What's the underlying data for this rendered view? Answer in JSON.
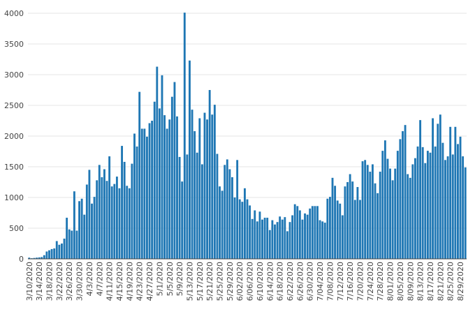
{
  "chart_data": {
    "type": "bar",
    "title": "",
    "xlabel": "",
    "ylabel": "",
    "ylim": [
      0,
      4000
    ],
    "yticks": [
      0,
      500,
      1000,
      1500,
      2000,
      2500,
      3000,
      3500,
      4000
    ],
    "grid": true,
    "legend": "none",
    "bar_color": "#1f77b4",
    "start_date": "2020-03-10",
    "xtick_labels": [
      "3/10/2020",
      "3/14/2020",
      "3/18/2020",
      "3/22/2020",
      "3/26/2020",
      "3/30/2020",
      "4/3/2020",
      "4/7/2020",
      "4/11/2020",
      "4/15/2020",
      "4/19/2020",
      "4/23/2020",
      "4/27/2020",
      "5/1/2020",
      "5/5/2020",
      "5/9/2020",
      "5/13/2020",
      "5/17/2020",
      "5/21/2020",
      "5/25/2020",
      "5/29/2020",
      "6/02/2020",
      "6/06/2020",
      "6/10/2020",
      "6/14/2020",
      "6/18/2020",
      "6/22/2020",
      "6/26/2020",
      "6/30/2020",
      "7/04/2020",
      "7/08/2020",
      "7/12/2020",
      "7/16/2020",
      "7/20/2020",
      "7/24/2020",
      "7/28/2020",
      "8/01/2020",
      "8/05/2020",
      "8/09/2020",
      "8/13/2020",
      "8/17/2020",
      "8/21/2020",
      "8/25/2020",
      "8/29/2020"
    ],
    "values": [
      20,
      10,
      15,
      20,
      25,
      30,
      60,
      120,
      140,
      160,
      170,
      290,
      230,
      250,
      330,
      670,
      480,
      460,
      1100,
      460,
      940,
      980,
      720,
      1210,
      1450,
      900,
      1010,
      1280,
      1530,
      1330,
      1460,
      1270,
      1670,
      1180,
      1220,
      1340,
      1150,
      1840,
      1580,
      1190,
      1150,
      1550,
      2040,
      1830,
      2720,
      2120,
      2120,
      1990,
      2210,
      2250,
      2560,
      3130,
      2450,
      2990,
      2340,
      2120,
      2270,
      2640,
      2880,
      2320,
      1660,
      1260,
      4010,
      1700,
      3230,
      2430,
      2080,
      1730,
      2290,
      1540,
      2380,
      2270,
      2750,
      2350,
      2510,
      1710,
      1180,
      1110,
      1530,
      1620,
      1460,
      1330,
      1000,
      1610,
      970,
      930,
      1150,
      970,
      870,
      650,
      790,
      610,
      770,
      640,
      670,
      670,
      470,
      630,
      560,
      600,
      690,
      640,
      680,
      450,
      600,
      710,
      890,
      860,
      790,
      640,
      740,
      720,
      820,
      860,
      860,
      860,
      630,
      610,
      590,
      980,
      1010,
      1320,
      1190,
      950,
      900,
      710,
      1180,
      1250,
      1380,
      1260,
      960,
      1170,
      960,
      1590,
      1610,
      1530,
      1420,
      1540,
      1230,
      1070,
      1420,
      1760,
      1930,
      1630,
      1470,
      1280,
      1470,
      1760,
      1950,
      2080,
      2180,
      1380,
      1320,
      1540,
      1640,
      1830,
      2260,
      1820,
      1560,
      1760,
      1730,
      2290,
      1830,
      2200,
      2350,
      1890,
      1610,
      1670,
      2150,
      1700,
      2150,
      1870,
      1990,
      1670,
      1490
    ]
  }
}
